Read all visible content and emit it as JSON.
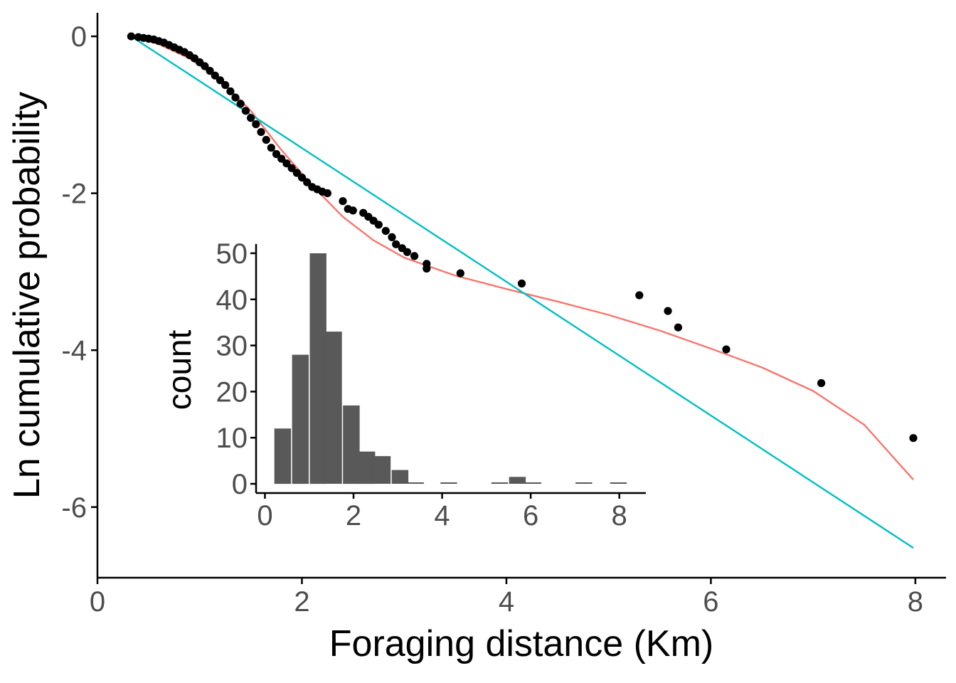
{
  "chart_data": [
    {
      "type": "scatter",
      "xlabel": "Foraging distance (Km)",
      "ylabel": "Ln cumulative probability",
      "xlim": [
        0,
        8.3
      ],
      "ylim": [
        -6.9,
        0.3
      ],
      "x_ticks": [
        0,
        2,
        4,
        6,
        8
      ],
      "y_ticks": [
        0,
        -2,
        -4,
        -6
      ],
      "grid": false,
      "colors": {
        "points": "#000000",
        "fit_red": "#F8766D",
        "fit_cyan": "#00BFC4",
        "axis": "#000000",
        "tick_text": "#4d4d4d"
      },
      "series": [
        {
          "type": "points",
          "points": [
            [
              0.33,
              0.0
            ],
            [
              0.4,
              -0.01
            ],
            [
              0.45,
              -0.02
            ],
            [
              0.5,
              -0.03
            ],
            [
              0.55,
              -0.04
            ],
            [
              0.6,
              -0.06
            ],
            [
              0.65,
              -0.08
            ],
            [
              0.7,
              -0.11
            ],
            [
              0.75,
              -0.14
            ],
            [
              0.8,
              -0.17
            ],
            [
              0.85,
              -0.2
            ],
            [
              0.9,
              -0.24
            ],
            [
              0.95,
              -0.28
            ],
            [
              1.0,
              -0.33
            ],
            [
              1.05,
              -0.38
            ],
            [
              1.1,
              -0.44
            ],
            [
              1.15,
              -0.5
            ],
            [
              1.2,
              -0.56
            ],
            [
              1.25,
              -0.62
            ],
            [
              1.3,
              -0.7
            ],
            [
              1.35,
              -0.78
            ],
            [
              1.4,
              -0.86
            ],
            [
              1.45,
              -0.95
            ],
            [
              1.5,
              -1.04
            ],
            [
              1.55,
              -1.12
            ],
            [
              1.6,
              -1.22
            ],
            [
              1.65,
              -1.32
            ],
            [
              1.7,
              -1.42
            ],
            [
              1.75,
              -1.5
            ],
            [
              1.8,
              -1.56
            ],
            [
              1.85,
              -1.62
            ],
            [
              1.9,
              -1.68
            ],
            [
              1.95,
              -1.74
            ],
            [
              2.0,
              -1.8
            ],
            [
              2.05,
              -1.86
            ],
            [
              2.1,
              -1.92
            ],
            [
              2.15,
              -1.95
            ],
            [
              2.2,
              -1.98
            ],
            [
              2.25,
              -2.0
            ],
            [
              2.4,
              -2.1
            ],
            [
              2.45,
              -2.2
            ],
            [
              2.5,
              -2.22
            ],
            [
              2.6,
              -2.25
            ],
            [
              2.65,
              -2.3
            ],
            [
              2.7,
              -2.35
            ],
            [
              2.75,
              -2.4
            ],
            [
              2.82,
              -2.48
            ],
            [
              2.88,
              -2.56
            ],
            [
              2.92,
              -2.65
            ],
            [
              2.98,
              -2.7
            ],
            [
              3.03,
              -2.75
            ],
            [
              3.1,
              -2.8
            ],
            [
              3.22,
              -2.9
            ],
            [
              3.22,
              -2.96
            ],
            [
              3.55,
              -3.02
            ],
            [
              4.15,
              -3.15
            ],
            [
              5.3,
              -3.3
            ],
            [
              5.58,
              -3.5
            ],
            [
              5.68,
              -3.71
            ],
            [
              6.15,
              -3.99
            ],
            [
              7.08,
              -4.42
            ],
            [
              7.98,
              -5.12
            ]
          ]
        },
        {
          "type": "line",
          "color": "red",
          "points": [
            [
              0.35,
              0.0
            ],
            [
              0.6,
              -0.1
            ],
            [
              0.9,
              -0.28
            ],
            [
              1.2,
              -0.55
            ],
            [
              1.5,
              -0.95
            ],
            [
              1.8,
              -1.45
            ],
            [
              2.1,
              -1.9
            ],
            [
              2.4,
              -2.3
            ],
            [
              2.7,
              -2.6
            ],
            [
              3.0,
              -2.82
            ],
            [
              3.5,
              -3.05
            ],
            [
              4.0,
              -3.22
            ],
            [
              4.5,
              -3.38
            ],
            [
              5.0,
              -3.55
            ],
            [
              5.5,
              -3.75
            ],
            [
              6.0,
              -3.98
            ],
            [
              6.5,
              -4.22
            ],
            [
              7.0,
              -4.52
            ],
            [
              7.5,
              -4.95
            ],
            [
              7.98,
              -5.65
            ]
          ]
        },
        {
          "type": "line",
          "color": "cyan",
          "points": [
            [
              0.33,
              0.0
            ],
            [
              7.98,
              -6.52
            ]
          ]
        }
      ]
    },
    {
      "type": "bar",
      "xlabel": "",
      "ylabel": "count",
      "xlim": [
        -0.2,
        8.6
      ],
      "ylim": [
        -2,
        52
      ],
      "x_ticks": [
        0,
        2,
        4,
        6,
        8
      ],
      "y_ticks": [
        0,
        10,
        20,
        30,
        40,
        50
      ],
      "bin_width": 0.375,
      "bins": [
        {
          "center": 0.4,
          "value": 12
        },
        {
          "center": 0.8,
          "value": 28
        },
        {
          "center": 1.2,
          "value": 50
        },
        {
          "center": 1.55,
          "value": 33
        },
        {
          "center": 1.95,
          "value": 17
        },
        {
          "center": 2.3,
          "value": 7
        },
        {
          "center": 2.65,
          "value": 6
        },
        {
          "center": 3.05,
          "value": 3
        },
        {
          "center": 3.4,
          "value": 0
        },
        {
          "center": 4.15,
          "value": 0
        },
        {
          "center": 5.3,
          "value": 0
        },
        {
          "center": 5.7,
          "value": 1.5
        },
        {
          "center": 6.05,
          "value": 0
        },
        {
          "center": 7.2,
          "value": 0
        },
        {
          "center": 7.98,
          "value": 0
        }
      ],
      "colors": {
        "bar": "#595959"
      }
    }
  ]
}
